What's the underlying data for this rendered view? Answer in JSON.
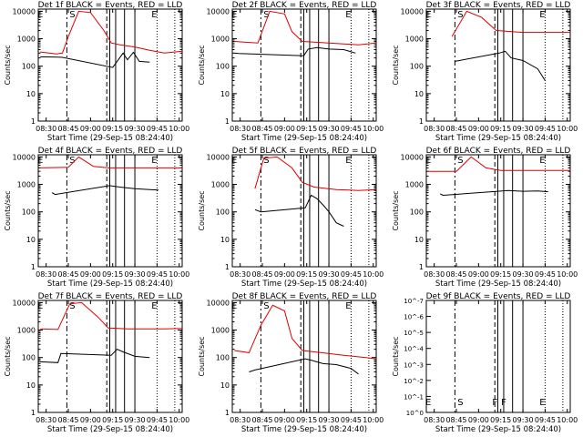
{
  "x_axis": {
    "label": "Start Time (29-Sep-15 08:24:40)",
    "ticks": [
      "08:30",
      "08:45",
      "09:00",
      "09:15",
      "09:30",
      "09:45",
      "10:00"
    ],
    "range": [
      "08:24:40",
      "10:02"
    ]
  },
  "y_axis": {
    "label": "Counts/sec",
    "scale": "log",
    "ticks": [
      "1",
      "10",
      "100",
      "1000",
      "10000"
    ],
    "range": [
      1,
      12000
    ]
  },
  "y_axis_empty_panel": {
    "ticks": [
      "10^0",
      "10^-1",
      "10^-2",
      "10^-3",
      "10^-4",
      "10^-5",
      "10^-6",
      "10^-7"
    ]
  },
  "colors": {
    "events": "#000000",
    "lld": "#dd0000",
    "axes": "#000000"
  },
  "markers": {
    "E_start": "08:26",
    "S": "08:44",
    "F1": "09:11",
    "F2": "09:17",
    "E_end": "09:37",
    "other_lines": [
      "09:13",
      "09:23",
      "09:30"
    ],
    "dotted": [
      "09:45",
      "09:57"
    ],
    "labels": {
      "E": "E",
      "S": "S",
      "F": "F"
    }
  },
  "chart_data": [
    {
      "type": "line",
      "title": "Det 1f BLACK = Events, RED = LLD",
      "series": [
        {
          "name": "Events",
          "color": "#000000",
          "points": [
            [
              "08:26",
              220
            ],
            [
              "08:38",
              215
            ],
            [
              "08:41",
              210
            ],
            [
              "09:15",
              90
            ],
            [
              "09:18",
              150
            ],
            [
              "09:22",
              300
            ],
            [
              "09:25",
              170
            ],
            [
              "09:29",
              320
            ],
            [
              "09:33",
              150
            ],
            [
              "09:40",
              140
            ]
          ]
        },
        {
          "name": "LLD",
          "color": "#dd0000",
          "points": [
            [
              "08:26",
              330
            ],
            [
              "08:37",
              280
            ],
            [
              "08:41",
              300
            ],
            [
              "08:45",
              1200
            ],
            [
              "08:52",
              10000
            ],
            [
              "09:00",
              9000
            ],
            [
              "09:09",
              2000
            ],
            [
              "09:14",
              700
            ],
            [
              "09:20",
              600
            ],
            [
              "09:30",
              500
            ],
            [
              "09:40",
              380
            ],
            [
              "09:50",
              300
            ],
            [
              "10:02",
              350
            ]
          ]
        }
      ]
    },
    {
      "type": "line",
      "title": "Det 2f BLACK = Events, RED = LLD",
      "series": [
        {
          "name": "Events",
          "color": "#000000",
          "points": [
            [
              "08:26",
              300
            ],
            [
              "08:29",
              290
            ],
            [
              "09:13",
              240
            ],
            [
              "09:16",
              420
            ],
            [
              "09:22",
              480
            ],
            [
              "09:30",
              420
            ],
            [
              "09:40",
              400
            ],
            [
              "09:48",
              300
            ]
          ]
        },
        {
          "name": "LLD",
          "color": "#dd0000",
          "points": [
            [
              "08:26",
              800
            ],
            [
              "08:42",
              700
            ],
            [
              "08:50",
              10000
            ],
            [
              "09:00",
              8000
            ],
            [
              "09:05",
              1800
            ],
            [
              "09:12",
              800
            ],
            [
              "09:20",
              750
            ],
            [
              "09:40",
              650
            ],
            [
              "09:50",
              600
            ],
            [
              "10:02",
              700
            ]
          ]
        }
      ]
    },
    {
      "type": "line",
      "title": "Det 3f BLACK = Events, RED = LLD",
      "series": [
        {
          "name": "Events",
          "color": "#000000",
          "points": [
            [
              "08:44",
              150
            ],
            [
              "09:14",
              300
            ],
            [
              "09:18",
              350
            ],
            [
              "09:22",
              200
            ],
            [
              "09:30",
              160
            ],
            [
              "09:40",
              80
            ],
            [
              "09:45",
              30
            ]
          ]
        },
        {
          "name": "LLD",
          "color": "#dd0000",
          "points": [
            [
              "08:42",
              1200
            ],
            [
              "08:52",
              10000
            ],
            [
              "09:02",
              6000
            ],
            [
              "09:12",
              2000
            ],
            [
              "09:30",
              1700
            ],
            [
              "09:50",
              1700
            ],
            [
              "10:02",
              1700
            ]
          ]
        }
      ]
    },
    {
      "type": "line",
      "title": "Det 4f BLACK = Events, RED = LLD",
      "series": [
        {
          "name": "Events",
          "color": "#000000",
          "points": [
            [
              "08:34",
              500
            ],
            [
              "08:36",
              430
            ],
            [
              "09:13",
              900
            ],
            [
              "09:20",
              800
            ],
            [
              "09:30",
              700
            ],
            [
              "09:40",
              650
            ],
            [
              "09:46",
              620
            ]
          ]
        },
        {
          "name": "LLD",
          "color": "#dd0000",
          "points": [
            [
              "08:26",
              4000
            ],
            [
              "08:45",
              4200
            ],
            [
              "08:52",
              10000
            ],
            [
              "09:02",
              4500
            ],
            [
              "09:12",
              4000
            ],
            [
              "09:30",
              4000
            ],
            [
              "09:50",
              4000
            ],
            [
              "10:02",
              4000
            ]
          ]
        }
      ]
    },
    {
      "type": "line",
      "title": "Det 5f BLACK = Events, RED = LLD",
      "series": [
        {
          "name": "Events",
          "color": "#000000",
          "points": [
            [
              "08:40",
              120
            ],
            [
              "08:44",
              100
            ],
            [
              "09:14",
              140
            ],
            [
              "09:18",
              400
            ],
            [
              "09:22",
              300
            ],
            [
              "09:26",
              180
            ],
            [
              "09:30",
              100
            ],
            [
              "09:35",
              40
            ],
            [
              "09:40",
              30
            ]
          ]
        },
        {
          "name": "LLD",
          "color": "#dd0000",
          "points": [
            [
              "08:40",
              700
            ],
            [
              "08:46",
              9000
            ],
            [
              "08:55",
              10000
            ],
            [
              "09:05",
              4000
            ],
            [
              "09:12",
              1200
            ],
            [
              "09:20",
              800
            ],
            [
              "09:35",
              650
            ],
            [
              "09:50",
              600
            ],
            [
              "10:02",
              650
            ]
          ]
        }
      ]
    },
    {
      "type": "line",
      "title": "Det 6f BLACK = Events, RED = LLD",
      "series": [
        {
          "name": "Events",
          "color": "#000000",
          "points": [
            [
              "08:34",
              450
            ],
            [
              "08:36",
              400
            ],
            [
              "09:13",
              560
            ],
            [
              "09:20",
              600
            ],
            [
              "09:30",
              560
            ],
            [
              "09:40",
              580
            ],
            [
              "09:47",
              540
            ]
          ]
        },
        {
          "name": "LLD",
          "color": "#dd0000",
          "points": [
            [
              "08:26",
              3000
            ],
            [
              "08:45",
              3000
            ],
            [
              "08:55",
              10000
            ],
            [
              "09:05",
              4000
            ],
            [
              "09:15",
              3200
            ],
            [
              "09:35",
              3200
            ],
            [
              "10:02",
              3200
            ]
          ]
        }
      ]
    },
    {
      "type": "line",
      "title": "Det 7f BLACK = Events, RED = LLD",
      "series": [
        {
          "name": "Events",
          "color": "#000000",
          "points": [
            [
              "08:26",
              70
            ],
            [
              "08:38",
              65
            ],
            [
              "08:40",
              140
            ],
            [
              "09:14",
              120
            ],
            [
              "09:18",
              200
            ],
            [
              "09:22",
              160
            ],
            [
              "09:30",
              110
            ],
            [
              "09:40",
              100
            ]
          ]
        },
        {
          "name": "LLD",
          "color": "#dd0000",
          "points": [
            [
              "08:26",
              1100
            ],
            [
              "08:38",
              1050
            ],
            [
              "08:46",
              9000
            ],
            [
              "08:54",
              10000
            ],
            [
              "09:05",
              3000
            ],
            [
              "09:12",
              1200
            ],
            [
              "09:25",
              1100
            ],
            [
              "09:50",
              1100
            ],
            [
              "10:02",
              1150
            ]
          ]
        }
      ]
    },
    {
      "type": "line",
      "title": "Det 8f BLACK = Events, RED = LLD",
      "series": [
        {
          "name": "Events",
          "color": "#000000",
          "points": [
            [
              "08:36",
              30
            ],
            [
              "08:40",
              35
            ],
            [
              "09:14",
              90
            ],
            [
              "09:18",
              80
            ],
            [
              "09:26",
              60
            ],
            [
              "09:35",
              55
            ],
            [
              "09:45",
              40
            ],
            [
              "09:50",
              25
            ]
          ]
        },
        {
          "name": "LLD",
          "color": "#dd0000",
          "points": [
            [
              "08:26",
              180
            ],
            [
              "08:36",
              150
            ],
            [
              "08:44",
              1500
            ],
            [
              "08:52",
              8000
            ],
            [
              "09:00",
              5000
            ],
            [
              "09:05",
              500
            ],
            [
              "09:12",
              180
            ],
            [
              "09:25",
              150
            ],
            [
              "09:40",
              120
            ],
            [
              "09:55",
              100
            ],
            [
              "10:02",
              90
            ]
          ]
        }
      ]
    },
    {
      "type": "line",
      "title": "Det 9f BLACK = Events, RED = LLD",
      "series": []
    }
  ]
}
